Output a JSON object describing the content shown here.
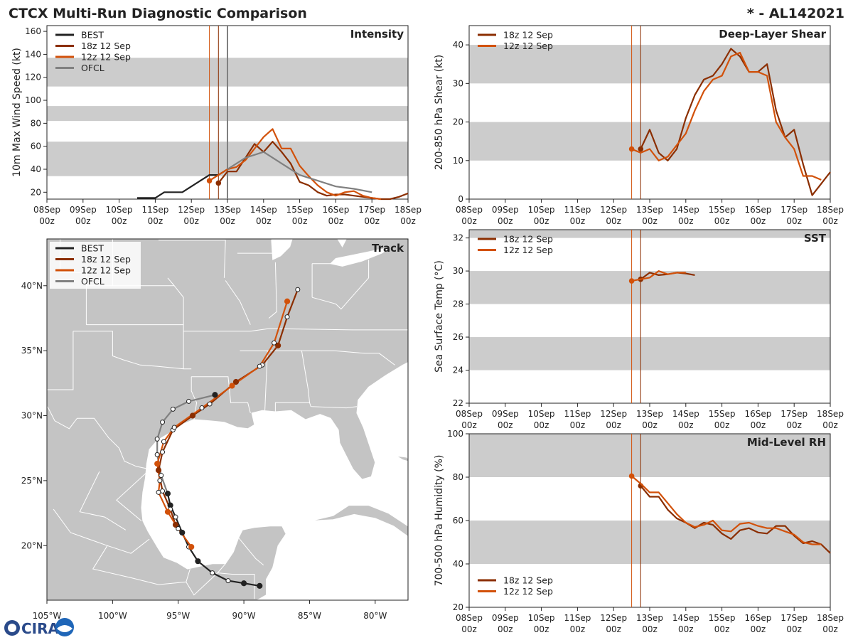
{
  "header": {
    "title": "CTCX Multi-Run Diagnostic Comparison",
    "storm": "* - AL142021"
  },
  "colors": {
    "best": "#222222",
    "run18z": "#8b2e00",
    "run12z": "#d2510a",
    "ofcl": "#808080",
    "band": "#cccccc",
    "land": "#c4c4c4",
    "border": "#ffffff"
  },
  "time_axis": {
    "ticks": [
      "08Sep 00z",
      "09Sep 00z",
      "10Sep 00z",
      "11Sep 00z",
      "12Sep 00z",
      "13Sep 00z",
      "14Sep 00z",
      "15Sep 00z",
      "16Sep 00z",
      "17Sep 00z",
      "18Sep 00z"
    ],
    "init_12z": 4.5,
    "init_18z": 4.75,
    "ofcl_time": 5.0
  },
  "logo": {
    "text": "CIRA"
  },
  "chart_data": [
    {
      "id": "intensity",
      "type": "line",
      "title": "Intensity",
      "ylabel": "10m Max Wind Speed (kt)",
      "ylim": [
        14,
        165
      ],
      "yticks": [
        20,
        40,
        60,
        80,
        100,
        120,
        140,
        160
      ],
      "bands": [
        [
          34,
          64
        ],
        [
          82,
          95
        ],
        [
          112,
          137
        ]
      ],
      "init_lines": [
        "run12z",
        "run18z",
        "ofcl"
      ],
      "legend": [
        "BEST",
        "18z 12 Sep",
        "12z 12 Sep",
        "OFCL"
      ],
      "series": [
        {
          "name": "BEST",
          "key": "best",
          "x": [
            2.5,
            3.0,
            3.25,
            3.75,
            4.0,
            4.25,
            4.5,
            4.75,
            5.0
          ],
          "y": [
            15,
            15,
            20,
            20,
            25,
            30,
            35,
            35,
            40
          ]
        },
        {
          "name": "18z 12 Sep",
          "key": "run18z",
          "marker": true,
          "x": [
            4.75,
            5.0,
            5.25,
            5.5,
            5.75,
            6.0,
            6.25,
            6.5,
            6.75,
            7.0,
            7.25,
            7.5,
            7.75,
            8.0,
            8.25,
            8.5,
            8.75,
            9.0,
            9.25,
            9.5,
            9.75,
            10.0
          ],
          "y": [
            28,
            38,
            38,
            50,
            62,
            55,
            64,
            55,
            45,
            29,
            26,
            20,
            17,
            18,
            18,
            17,
            16,
            15,
            14,
            14,
            16,
            19
          ]
        },
        {
          "name": "12z 12 Sep",
          "key": "run12z",
          "marker": true,
          "x": [
            4.5,
            4.75,
            5.0,
            5.25,
            5.5,
            5.75,
            6.0,
            6.25,
            6.5,
            6.75,
            7.0,
            7.25,
            7.5,
            7.75,
            8.0,
            8.25,
            8.5,
            8.75,
            9.0,
            9.25
          ],
          "y": [
            30,
            35,
            40,
            42,
            48,
            58,
            68,
            75,
            58,
            58,
            43,
            34,
            26,
            20,
            17,
            20,
            21,
            17,
            15,
            14
          ]
        },
        {
          "name": "OFCL",
          "key": "ofcl",
          "x": [
            5.0,
            5.5,
            6.0,
            6.5,
            7.0,
            7.5,
            8.0,
            8.5,
            9.0
          ],
          "y": [
            40,
            50,
            55,
            45,
            35,
            30,
            25,
            23,
            20
          ]
        }
      ]
    },
    {
      "id": "shear",
      "type": "line",
      "title": "Deep-Layer Shear",
      "ylabel": "200-850 hPa Shear (kt)",
      "ylim": [
        0,
        45
      ],
      "yticks": [
        0,
        10,
        20,
        30,
        40
      ],
      "bands": [
        [
          10,
          20
        ],
        [
          30,
          40
        ]
      ],
      "init_lines": [
        "run12z",
        "run18z"
      ],
      "legend": [
        "18z 12 Sep",
        "12z 12 Sep"
      ],
      "series": [
        {
          "name": "18z 12 Sep",
          "key": "run18z",
          "marker": true,
          "x": [
            4.75,
            5.0,
            5.25,
            5.5,
            5.75,
            6.0,
            6.25,
            6.5,
            6.75,
            7.0,
            7.25,
            7.5,
            7.75,
            8.0,
            8.25,
            8.5,
            8.75,
            9.0,
            9.25,
            9.5,
            9.75,
            10.0
          ],
          "y": [
            13,
            18,
            12,
            10,
            13,
            21,
            27,
            31,
            32,
            35,
            39,
            37,
            33,
            33,
            35,
            23,
            16,
            18,
            9,
            1,
            4,
            7
          ]
        },
        {
          "name": "12z 12 Sep",
          "key": "run12z",
          "marker": true,
          "x": [
            4.5,
            4.75,
            5.0,
            5.25,
            5.5,
            5.75,
            6.0,
            6.25,
            6.5,
            6.75,
            7.0,
            7.25,
            7.5,
            7.75,
            8.0,
            8.25,
            8.5,
            8.75,
            9.0,
            9.25,
            9.5,
            9.75
          ],
          "y": [
            13,
            12,
            13,
            10,
            11,
            14,
            17,
            23,
            28,
            31,
            32,
            37,
            38,
            33,
            33,
            32,
            20,
            16,
            13,
            6,
            6,
            5
          ]
        }
      ]
    },
    {
      "id": "sst",
      "type": "line",
      "title": "SST",
      "ylabel": "Sea Surface Temp (°C)",
      "ylim": [
        22,
        32.5
      ],
      "yticks": [
        22,
        24,
        26,
        28,
        30,
        32
      ],
      "bands": [
        [
          24,
          26
        ],
        [
          28,
          30
        ],
        [
          32,
          32.5
        ]
      ],
      "init_lines": [
        "run12z",
        "run18z"
      ],
      "legend": [
        "18z 12 Sep",
        "12z 12 Sep"
      ],
      "series": [
        {
          "name": "18z 12 Sep",
          "key": "run18z",
          "marker": true,
          "x": [
            4.75,
            5.0,
            5.25,
            5.5,
            5.75,
            6.0,
            6.25
          ],
          "y": [
            29.5,
            29.9,
            29.75,
            29.8,
            29.9,
            29.85,
            29.75
          ]
        },
        {
          "name": "12z 12 Sep",
          "key": "run12z",
          "marker": true,
          "x": [
            4.5,
            4.75,
            5.0,
            5.25,
            5.5,
            5.75,
            6.0
          ],
          "y": [
            29.4,
            29.5,
            29.6,
            30.0,
            29.8,
            29.9,
            29.9
          ]
        }
      ]
    },
    {
      "id": "rh",
      "type": "line",
      "title": "Mid-Level RH",
      "ylabel": "700-500 hPa Humidity (%)",
      "ylim": [
        20,
        100
      ],
      "yticks": [
        20,
        40,
        60,
        80,
        100
      ],
      "bands": [
        [
          40,
          60
        ],
        [
          80,
          100
        ]
      ],
      "init_lines": [
        "run12z",
        "run18z"
      ],
      "legend": [
        "18z 12 Sep",
        "12z 12 Sep"
      ],
      "series": [
        {
          "name": "18z 12 Sep",
          "key": "run18z",
          "marker": true,
          "x": [
            4.75,
            5.0,
            5.25,
            5.5,
            5.75,
            6.0,
            6.25,
            6.5,
            6.75,
            7.0,
            7.25,
            7.5,
            7.75,
            8.0,
            8.25,
            8.5,
            8.75,
            9.0,
            9.25,
            9.5,
            9.75,
            10.0
          ],
          "y": [
            76,
            71,
            71,
            65,
            61,
            59,
            56.5,
            59,
            58,
            54,
            51.5,
            55.5,
            56.5,
            54.5,
            54,
            57.5,
            57.5,
            53,
            49.5,
            50.5,
            49,
            45
          ]
        },
        {
          "name": "12z 12 Sep",
          "key": "run12z",
          "marker": true,
          "x": [
            4.5,
            4.75,
            5.0,
            5.25,
            5.5,
            5.75,
            6.0,
            6.25,
            6.5,
            6.75,
            7.0,
            7.25,
            7.5,
            7.75,
            8.0,
            8.25,
            8.5,
            8.75,
            9.0,
            9.25,
            9.5,
            9.75
          ],
          "y": [
            80.5,
            77,
            73,
            73,
            68,
            63,
            59,
            57,
            58,
            60,
            55.5,
            55,
            58.5,
            59,
            57.5,
            56.5,
            56.5,
            55,
            53.5,
            50,
            49,
            49
          ]
        }
      ]
    },
    {
      "id": "track",
      "type": "scatter",
      "title": "Track",
      "xlim": [
        -105,
        -77.5
      ],
      "ylim": [
        15.8,
        43.6
      ],
      "xticks": [
        -105,
        -100,
        -95,
        -90,
        -85,
        -80
      ],
      "xtick_labels": [
        "105°W",
        "100°W",
        "95°W",
        "90°W",
        "85°W",
        "80°W"
      ],
      "yticks": [
        20,
        25,
        30,
        35,
        40
      ],
      "ytick_labels": [
        "20°N",
        "25°N",
        "30°N",
        "35°N",
        "40°N"
      ],
      "legend": [
        "BEST",
        "18z 12 Sep",
        "12z 12 Sep",
        "OFCL"
      ],
      "series": [
        {
          "name": "BEST",
          "key": "best",
          "lon": [
            -88.8,
            -90.0,
            -91.2,
            -92.4,
            -93.5,
            -94.2,
            -94.7,
            -95.2,
            -95.6,
            -95.8
          ],
          "lat": [
            16.9,
            17.1,
            17.3,
            17.9,
            18.8,
            19.9,
            21.0,
            22.2,
            23.1,
            24.0
          ],
          "filled": [
            true,
            true,
            false,
            false,
            true,
            false,
            true,
            false,
            true,
            true
          ]
        },
        {
          "name": "18z 12 Sep",
          "key": "run18z",
          "lon": [
            -95.2,
            -95.6,
            -96.2,
            -96.5,
            -96.2,
            -95.4,
            -93.9,
            -92.6,
            -90.6,
            -88.6,
            -87.4,
            -86.7,
            -85.9
          ],
          "lat": [
            21.6,
            22.8,
            24.2,
            25.8,
            27.2,
            28.9,
            30.0,
            30.9,
            32.6,
            33.9,
            35.4,
            37.6,
            39.7
          ],
          "filled": [
            true,
            false,
            false,
            true,
            false,
            false,
            true,
            false,
            true,
            false,
            true,
            false,
            false
          ]
        },
        {
          "name": "12z 12 Sep",
          "key": "run12z",
          "lon": [
            -94.0,
            -95.0,
            -95.8,
            -96.5,
            -96.4,
            -96.6,
            -96.1,
            -95.3,
            -93.2,
            -90.9,
            -88.8,
            -87.7,
            -86.7
          ],
          "lat": [
            19.9,
            21.3,
            22.6,
            24.1,
            25.0,
            26.3,
            28.0,
            29.1,
            30.6,
            32.3,
            33.8,
            35.6,
            38.8
          ],
          "filled": [
            true,
            false,
            true,
            false,
            false,
            true,
            false,
            false,
            false,
            true,
            false,
            false,
            true
          ]
        },
        {
          "name": "OFCL",
          "key": "ofcl",
          "lon": [
            -95.8,
            -96.3,
            -96.6,
            -96.6,
            -96.2,
            -95.4,
            -94.2,
            -92.2
          ],
          "lat": [
            24.0,
            25.4,
            27.0,
            28.2,
            29.5,
            30.5,
            31.1,
            31.6
          ],
          "filled": [
            false,
            false,
            false,
            false,
            false,
            false,
            false,
            true
          ]
        }
      ]
    }
  ]
}
